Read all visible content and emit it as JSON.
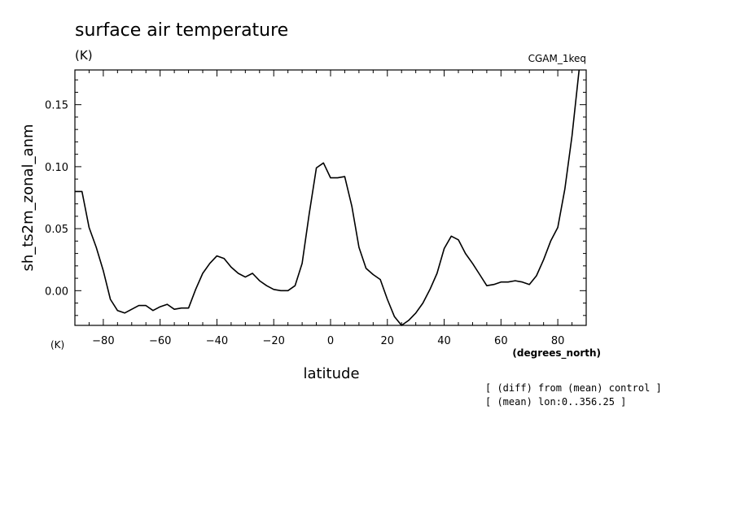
{
  "chart_data": {
    "type": "line",
    "title": "surface air temperature",
    "title_units": "(K)",
    "run_label": "CGAM_1keq",
    "xlabel": "latitude",
    "xunits": "(degrees_north)",
    "ylabel": "sh_ts2m_zonal_anm",
    "yunits": "(K)",
    "xlim": [
      -90,
      90
    ],
    "ylim": [
      -0.028,
      0.178
    ],
    "x_ticks": [
      -80,
      -60,
      -40,
      -20,
      0,
      20,
      40,
      60,
      80
    ],
    "x_tick_labels": [
      "−80",
      "−60",
      "−40",
      "−20",
      "0",
      "20",
      "40",
      "60",
      "80"
    ],
    "y_ticks": [
      0.0,
      0.05,
      0.1,
      0.15
    ],
    "y_tick_labels": [
      "0.00",
      "0.05",
      "0.10",
      "0.15"
    ],
    "grid": false,
    "series": [
      {
        "x": [
          -90,
          -87.5,
          -85,
          -82.5,
          -80,
          -77.5,
          -75,
          -72.5,
          -70,
          -67.5,
          -65,
          -62.5,
          -60,
          -57.5,
          -55,
          -52.5,
          -50,
          -47.5,
          -45,
          -42.5,
          -40,
          -37.5,
          -35,
          -32.5,
          -30,
          -27.5,
          -25,
          -22.5,
          -20,
          -17.5,
          -15,
          -12.5,
          -10,
          -7.5,
          -5,
          -2.5,
          0,
          2.5,
          5,
          7.5,
          10,
          12.5,
          15,
          17.5,
          20,
          22.5,
          25,
          27.5,
          30,
          32.5,
          35,
          37.5,
          40,
          42.5,
          45,
          47.5,
          50,
          52.5,
          55,
          57.5,
          60,
          62.5,
          65,
          67.5,
          70,
          72.5,
          75,
          77.5,
          80,
          82.5,
          85,
          87.5
        ],
        "values": [
          0.08,
          0.08,
          0.051,
          0.035,
          0.016,
          -0.007,
          -0.016,
          -0.018,
          -0.015,
          -0.012,
          -0.012,
          -0.016,
          -0.013,
          -0.011,
          -0.015,
          -0.014,
          -0.014,
          0.001,
          0.014,
          0.022,
          0.028,
          0.026,
          0.019,
          0.014,
          0.011,
          0.014,
          0.008,
          0.004,
          0.001,
          0.0,
          0.0,
          0.004,
          0.022,
          0.062,
          0.099,
          0.103,
          0.091,
          0.091,
          0.092,
          0.068,
          0.035,
          0.018,
          0.013,
          0.009,
          -0.007,
          -0.021,
          -0.028,
          -0.024,
          -0.018,
          -0.01,
          0.001,
          0.014,
          0.034,
          0.044,
          0.041,
          0.03,
          0.022,
          0.013,
          0.004,
          0.005,
          0.007,
          0.007,
          0.008,
          0.007,
          0.005,
          0.012,
          0.025,
          0.04,
          0.051,
          0.082,
          0.125,
          0.178
        ]
      }
    ]
  },
  "notes": [
    "[ (diff) from (mean) control ]",
    "[ (mean) lon:0..356.25 ]"
  ]
}
